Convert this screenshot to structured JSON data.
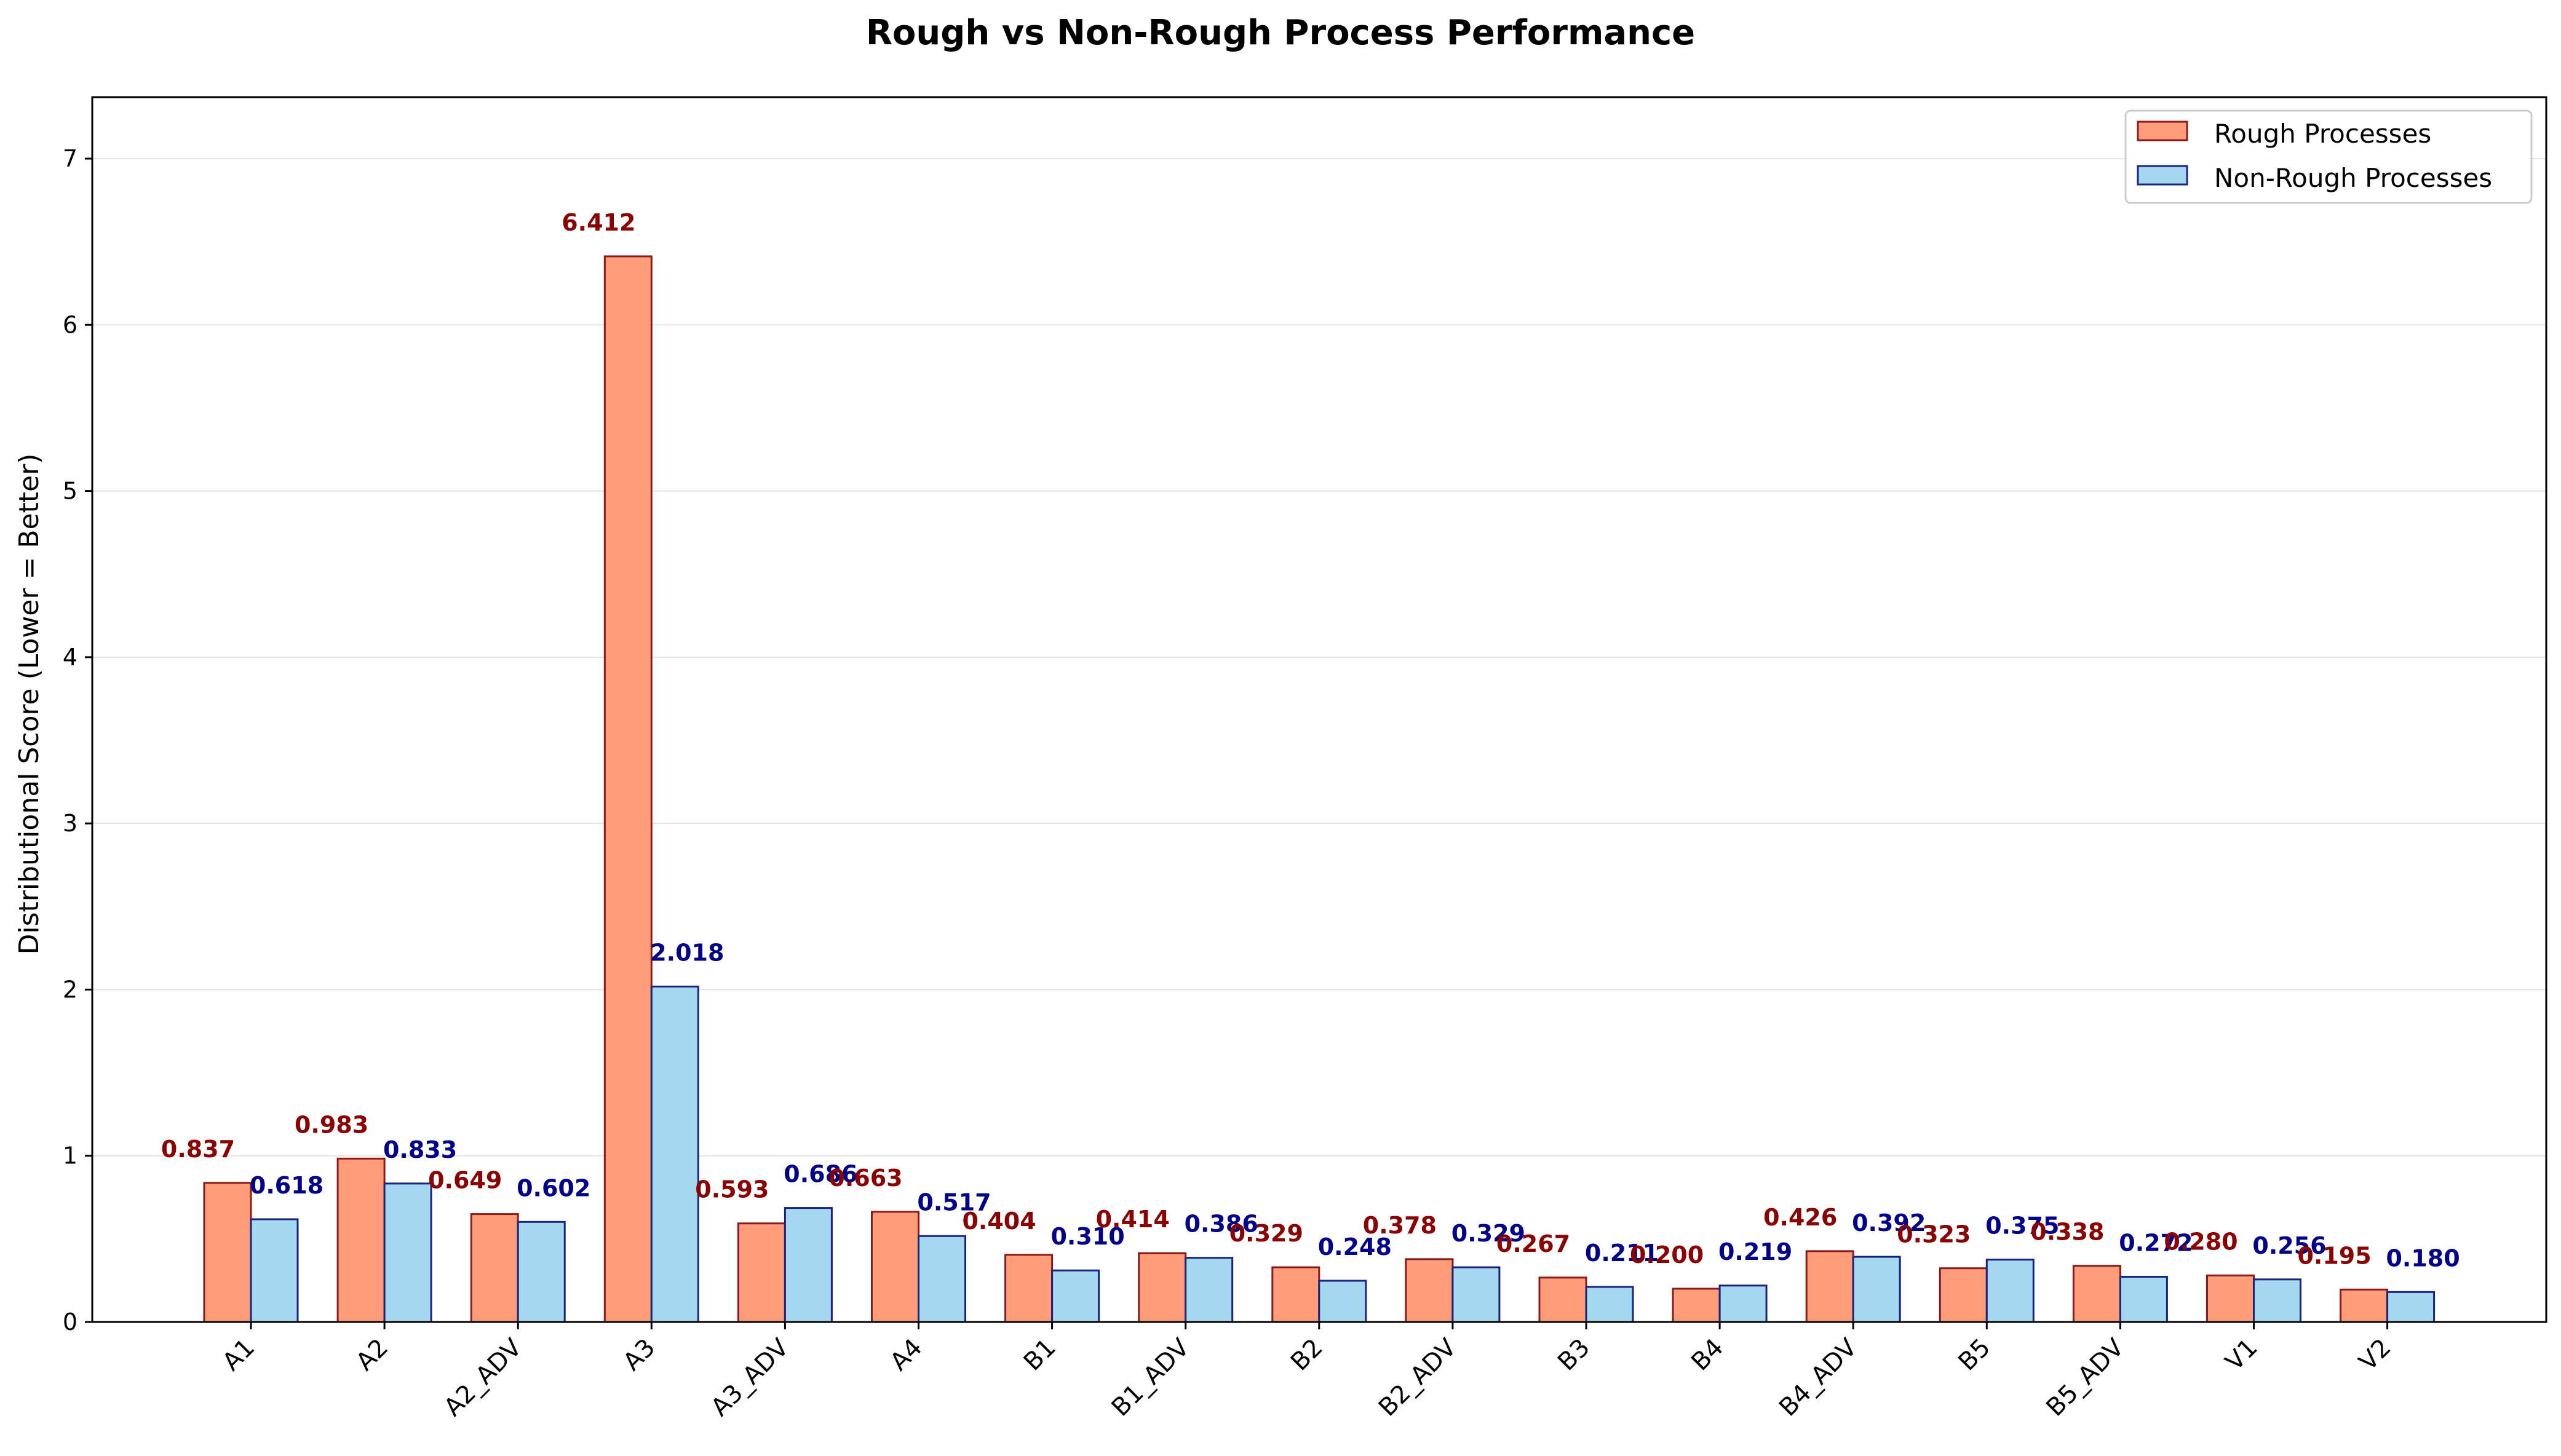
{
  "chart_data": {
    "type": "bar",
    "title": "Rough vs Non-Rough Process Performance",
    "xlabel": "",
    "ylabel": "Distributional Score (Lower = Better)",
    "ylim": [
      0,
      7.37
    ],
    "yticks": [
      0,
      1,
      2,
      3,
      4,
      5,
      6,
      7
    ],
    "grid": "y",
    "legend_position": "top-right",
    "categories": [
      "A1",
      "A2",
      "A2_ADV",
      "A3",
      "A3_ADV",
      "A4",
      "B1",
      "B1_ADV",
      "B2",
      "B2_ADV",
      "B3",
      "B4",
      "B4_ADV",
      "B5",
      "B5_ADV",
      "V1",
      "V2"
    ],
    "series": [
      {
        "name": "Rough Processes",
        "fill": "#FF9C7A",
        "stroke": "#8B1A1A",
        "label_color": "#8B0000",
        "values": [
          0.837,
          0.983,
          0.649,
          6.412,
          0.593,
          0.663,
          0.404,
          0.414,
          0.329,
          0.378,
          0.267,
          0.2,
          0.426,
          0.323,
          0.338,
          0.28,
          0.195
        ],
        "labels": [
          "0.837",
          "0.983",
          "0.649",
          "6.412",
          "0.593",
          "0.663",
          "0.404",
          "0.414",
          "0.329",
          "0.378",
          "0.267",
          "0.200",
          "0.426",
          "0.323",
          "0.338",
          "0.280",
          "0.195"
        ]
      },
      {
        "name": "Non-Rough Processes",
        "fill": "#A3D8EF",
        "stroke": "#1A237E",
        "label_color": "#00008B",
        "values": [
          0.618,
          0.833,
          0.602,
          2.018,
          0.686,
          0.517,
          0.31,
          0.386,
          0.248,
          0.329,
          0.211,
          0.219,
          0.392,
          0.375,
          0.272,
          0.256,
          0.18
        ],
        "labels": [
          "0.618",
          "0.833",
          "0.602",
          "2.018",
          "0.686",
          "0.517",
          "0.310",
          "0.386",
          "0.248",
          "0.329",
          "0.211",
          "0.219",
          "0.392",
          "0.375",
          "0.272",
          "0.256",
          "0.180"
        ]
      }
    ]
  }
}
